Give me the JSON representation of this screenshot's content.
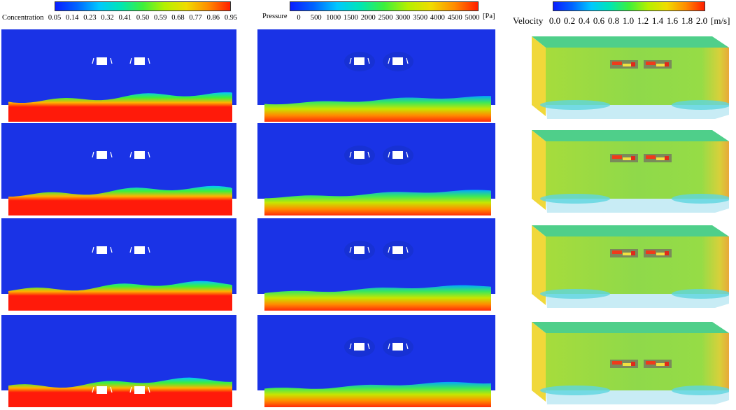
{
  "legends": {
    "concentration": {
      "title": "Concentration",
      "ticks": [
        "0.05",
        "0.14",
        "0.23",
        "0.32",
        "0.41",
        "0.50",
        "0.59",
        "0.68",
        "0.77",
        "0.86",
        "0.95"
      ]
    },
    "pressure": {
      "title": "Pressure",
      "ticks": [
        "0",
        "500",
        "1000",
        "1500",
        "2000",
        "2500",
        "3000",
        "3500",
        "4000",
        "4500",
        "5000"
      ],
      "unit": "[Pa]"
    },
    "velocity": {
      "title": "Velocity",
      "ticks": [
        "0.0",
        "0.2",
        "0.4",
        "0.6",
        "0.8",
        "1.0",
        "1.2",
        "1.4",
        "1.6",
        "1.8",
        "2.0"
      ],
      "unit": "[m/s]"
    }
  },
  "colors": {
    "low": "#1a33e6",
    "mid": "#35e43a",
    "high": "#ff1a0a",
    "velocity_face": "#8fd94a",
    "velocity_top": "#4fcf8a",
    "velocity_side": "#f0d83a"
  }
}
